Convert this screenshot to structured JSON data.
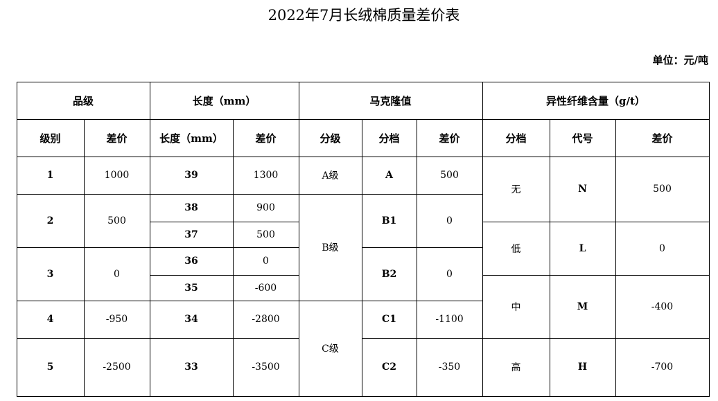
{
  "title": "2022年7月长绒棉质量差价表",
  "unit": "单位：元/吨",
  "headers": {
    "grade": "品级",
    "length": "长度（mm）",
    "micronaire": "马克隆值",
    "foreign_fiber": "异性纤维含量（g/t）",
    "grade_level": "级别",
    "grade_diff": "差价",
    "length_mm": "长度（mm）",
    "length_diff": "差价",
    "mic_class": "分级",
    "mic_tier": "分档",
    "mic_diff": "差价",
    "ff_tier": "分档",
    "ff_code": "代号",
    "ff_diff": "差价"
  },
  "grade": [
    {
      "level": "1",
      "diff": "1000"
    },
    {
      "level": "2",
      "diff": "500"
    },
    {
      "level": "3",
      "diff": "0"
    },
    {
      "level": "4",
      "diff": "-950"
    },
    {
      "level": "5",
      "diff": "-2500"
    }
  ],
  "length": [
    {
      "mm": "39",
      "diff": "1300"
    },
    {
      "mm": "38",
      "diff": "900"
    },
    {
      "mm": "37",
      "diff": "500"
    },
    {
      "mm": "36",
      "diff": "0"
    },
    {
      "mm": "35",
      "diff": "-600"
    },
    {
      "mm": "34",
      "diff": "-2800"
    },
    {
      "mm": "33",
      "diff": "-3500"
    }
  ],
  "micronaire": {
    "classes": [
      "A级",
      "B级",
      "C级"
    ],
    "tiers": [
      {
        "tier": "A",
        "diff": "500"
      },
      {
        "tier": "B1",
        "diff": "0"
      },
      {
        "tier": "B2",
        "diff": "0"
      },
      {
        "tier": "C1",
        "diff": "-1100"
      },
      {
        "tier": "C2",
        "diff": "-350"
      }
    ]
  },
  "foreign_fiber": [
    {
      "tier": "无",
      "code": "N",
      "diff": "500"
    },
    {
      "tier": "低",
      "code": "L",
      "diff": "0"
    },
    {
      "tier": "中",
      "code": "M",
      "diff": "-400"
    },
    {
      "tier": "高",
      "code": "H",
      "diff": "-700"
    }
  ]
}
